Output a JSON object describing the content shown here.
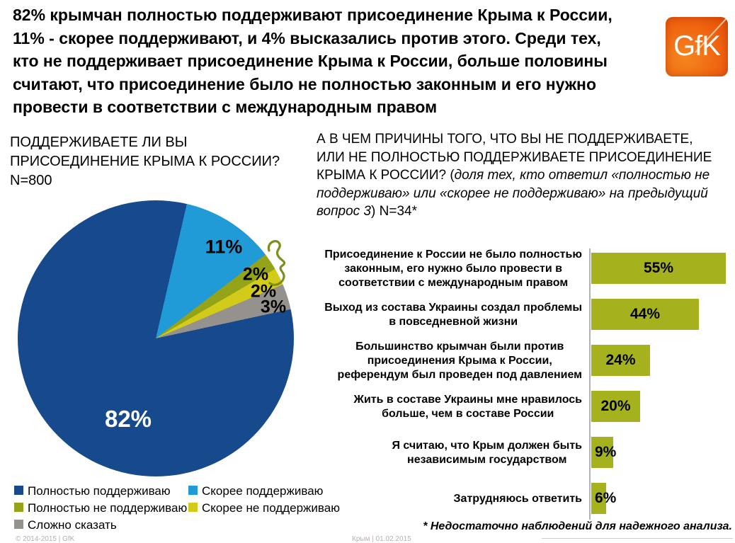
{
  "header": {
    "text": "82% крымчан полностью поддерживают присоединение Крыма к России,\n11% - скорее поддерживают, и  4% высказались против этого. Среди тех,\nкто не поддерживает присоединение Крыма к России, больше половины\nсчитают, что присоединение было не полностью законным и его нужно\nпровести в соответствии с международным правом"
  },
  "logo": {
    "text": "GfK"
  },
  "pie_section": {
    "title": "ПОДДЕРЖИВАЕТЕ ЛИ ВЫ\nПРИСОЕДИНЕНИЕ КРЫМА К РОССИИ?\nN=800"
  },
  "bar_section": {
    "title_main": " А В ЧЕМ ПРИЧИНЫ ТОГО, ЧТО ВЫ НЕ ПОДДЕРЖИВАЕТЕ, ИЛИ НЕ ПОЛНОСТЬЮ ПОДДЕРЖИВАЕТЕ ПРИСОЕДИНЕНИЕ КРЫМА К РОССИИ? (",
    "title_italic": "доля тех, кто ответил «полностью не поддерживаю» или «скорее не поддерживаю» на предыдущий вопрос 3",
    "title_tail": ") N=34*",
    "footnote": "* Недостаточно наблюдений для надежного анализа."
  },
  "footer": {
    "left": "© 2014-2015 | GfK",
    "center": "Крым | 01.02.2015"
  },
  "chart_data": [
    {
      "type": "pie",
      "title": "ПОДДЕРЖИВАЕТЕ ЛИ ВЫ ПРИСОЕДИНЕНИЕ КРЫМА К РОССИИ? N=800",
      "start_angle_deg": 13,
      "segments": [
        {
          "label": "Скорее поддерживаю",
          "value": 11,
          "color": "#219bd7"
        },
        {
          "label": "Полностью не поддерживаю",
          "value": 2,
          "color": "#94a317"
        },
        {
          "label": "Скорее не поддерживаю",
          "value": 2,
          "color": "#d3cb1a"
        },
        {
          "label": "Сложно сказать",
          "value": 3,
          "color": "#95918c"
        },
        {
          "label": "Полностью поддерживаю",
          "value": 82,
          "color": "#164a8c"
        }
      ],
      "legend": [
        {
          "label": "Полностью поддерживаю",
          "color": "#164a8c"
        },
        {
          "label": "Скорее поддерживаю",
          "color": "#219bd7"
        },
        {
          "label": "Полностью не поддерживаю",
          "color": "#94a317"
        },
        {
          "label": "Скорее не поддерживаю",
          "color": "#d3cb1a"
        },
        {
          "label": "Сложно сказать",
          "color": "#95918c"
        }
      ],
      "legend_position": "bottom-left"
    },
    {
      "type": "bar",
      "orientation": "horizontal",
      "title": "А В ЧЕМ ПРИЧИНЫ ТОГО, ЧТО ВЫ НЕ ПОДДЕРЖИВАЕТЕ, ИЛИ НЕ ПОЛНОСТЬЮ ПОДДЕРЖИВАЕТЕ ПРИСОЕДИНЕНИЕ КРЫМА К РОССИИ? N=34*",
      "unit": "%",
      "bar_color": "#a6b21d",
      "xlim": [
        0,
        58
      ],
      "categories": [
        "Присоединение к России не было полностью\nзаконным, его нужно было провести в\nсоответствии с международным правом",
        "Выход из состава Украины создал проблемы\nв повседневной жизни",
        "Большинство крымчан были против\nприсоединения Крыма к России,\nреферендум был проведен под давлением",
        "Жить в составе Украины мне нравилось\nбольше, чем в составе России",
        "Я считаю, что Крым должен быть\nнезависимым государством",
        "Затрудняюсь ответить"
      ],
      "values": [
        55,
        44,
        24,
        20,
        9,
        6
      ]
    }
  ]
}
